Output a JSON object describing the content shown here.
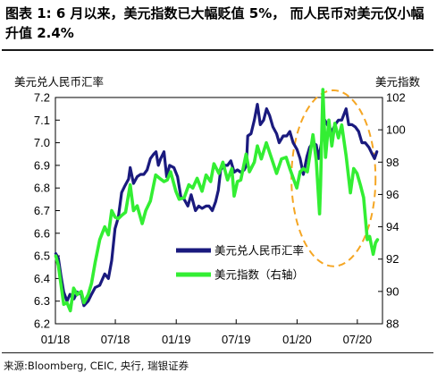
{
  "header": {
    "title": "图表 1: 6 月以来，美元指数已大幅贬值 5%， 而人民币对美元仅小幅升值 2.4%"
  },
  "footer": {
    "source": "来源:Bloomberg, CEIC, 央行, 瑞银证券"
  },
  "colors": {
    "usdcny": "#1a1a7e",
    "dxy": "#33ee33",
    "highlight": "#f5a623"
  },
  "chart_data": {
    "type": "line",
    "x_type": "date",
    "xlim": [
      "2018-01-01",
      "2020-09-15"
    ],
    "x_ticks": [
      {
        "date": "2018-01-01",
        "label": "01/18"
      },
      {
        "date": "2018-07-01",
        "label": "07/18"
      },
      {
        "date": "2019-01-01",
        "label": "01/19"
      },
      {
        "date": "2019-07-01",
        "label": "07/19"
      },
      {
        "date": "2020-01-01",
        "label": "01/20"
      },
      {
        "date": "2020-07-01",
        "label": "07/20"
      }
    ],
    "y_left": {
      "label": "美元兑人民币汇率",
      "range": [
        6.2,
        7.2
      ],
      "ticks": [
        "6.2",
        "6.3",
        "6.4",
        "6.5",
        "6.6",
        "6.7",
        "6.8",
        "6.9",
        "7.0",
        "7.1",
        "7.2"
      ]
    },
    "y_right": {
      "label": "美元指数",
      "range": [
        88,
        102
      ],
      "ticks": [
        "88",
        "90",
        "92",
        "94",
        "96",
        "98",
        "100",
        "102"
      ]
    },
    "legend": {
      "placement": "middle-right"
    },
    "highlight": {
      "shape": "dashed-ellipse",
      "x_range": [
        "2019-12-15",
        "2020-08-25"
      ],
      "y_range": [
        92,
        102
      ],
      "axis": "right"
    },
    "series": [
      {
        "name": "美元兑人民币汇率",
        "axis": "left",
        "points": [
          [
            "2018-01-02",
            6.51
          ],
          [
            "2018-01-10",
            6.49
          ],
          [
            "2018-01-18",
            6.41
          ],
          [
            "2018-01-26",
            6.34
          ],
          [
            "2018-02-05",
            6.3
          ],
          [
            "2018-02-14",
            6.33
          ],
          [
            "2018-02-26",
            6.31
          ],
          [
            "2018-03-08",
            6.34
          ],
          [
            "2018-03-20",
            6.33
          ],
          [
            "2018-03-28",
            6.28
          ],
          [
            "2018-04-10",
            6.3
          ],
          [
            "2018-04-20",
            6.33
          ],
          [
            "2018-05-01",
            6.36
          ],
          [
            "2018-05-15",
            6.37
          ],
          [
            "2018-05-30",
            6.42
          ],
          [
            "2018-06-10",
            6.4
          ],
          [
            "2018-06-20",
            6.48
          ],
          [
            "2018-06-30",
            6.62
          ],
          [
            "2018-07-10",
            6.67
          ],
          [
            "2018-07-20",
            6.78
          ],
          [
            "2018-07-30",
            6.81
          ],
          [
            "2018-08-10",
            6.84
          ],
          [
            "2018-08-15",
            6.89
          ],
          [
            "2018-08-25",
            6.82
          ],
          [
            "2018-09-05",
            6.85
          ],
          [
            "2018-09-15",
            6.86
          ],
          [
            "2018-09-25",
            6.86
          ],
          [
            "2018-10-05",
            6.88
          ],
          [
            "2018-10-15",
            6.93
          ],
          [
            "2018-10-25",
            6.95
          ],
          [
            "2018-11-01",
            6.96
          ],
          [
            "2018-11-08",
            6.9
          ],
          [
            "2018-11-15",
            6.93
          ],
          [
            "2018-11-25",
            6.96
          ],
          [
            "2018-12-03",
            6.85
          ],
          [
            "2018-12-12",
            6.9
          ],
          [
            "2018-12-25",
            6.89
          ],
          [
            "2019-01-05",
            6.85
          ],
          [
            "2019-01-15",
            6.76
          ],
          [
            "2019-01-25",
            6.75
          ],
          [
            "2019-02-05",
            6.72
          ],
          [
            "2019-02-15",
            6.77
          ],
          [
            "2019-02-28",
            6.7
          ],
          [
            "2019-03-10",
            6.72
          ],
          [
            "2019-03-20",
            6.71
          ],
          [
            "2019-04-01",
            6.72
          ],
          [
            "2019-04-10",
            6.72
          ],
          [
            "2019-04-20",
            6.7
          ],
          [
            "2019-04-30",
            6.74
          ],
          [
            "2019-05-08",
            6.79
          ],
          [
            "2019-05-15",
            6.88
          ],
          [
            "2019-05-25",
            6.9
          ],
          [
            "2019-06-05",
            6.9
          ],
          [
            "2019-06-15",
            6.92
          ],
          [
            "2019-06-25",
            6.87
          ],
          [
            "2019-07-05",
            6.88
          ],
          [
            "2019-07-15",
            6.87
          ],
          [
            "2019-07-25",
            6.88
          ],
          [
            "2019-08-01",
            6.9
          ],
          [
            "2019-08-05",
            7.03
          ],
          [
            "2019-08-15",
            7.04
          ],
          [
            "2019-08-25",
            7.1
          ],
          [
            "2019-09-03",
            7.17
          ],
          [
            "2019-09-12",
            7.08
          ],
          [
            "2019-09-22",
            7.1
          ],
          [
            "2019-10-01",
            7.15
          ],
          [
            "2019-10-10",
            7.12
          ],
          [
            "2019-10-20",
            7.07
          ],
          [
            "2019-10-31",
            7.04
          ],
          [
            "2019-11-08",
            7.0
          ],
          [
            "2019-11-20",
            7.03
          ],
          [
            "2019-12-01",
            7.03
          ],
          [
            "2019-12-10",
            7.05
          ],
          [
            "2019-12-20",
            7.0
          ],
          [
            "2020-01-01",
            6.97
          ],
          [
            "2020-01-10",
            6.93
          ],
          [
            "2020-01-20",
            6.86
          ],
          [
            "2020-01-31",
            6.94
          ],
          [
            "2020-02-08",
            6.98
          ],
          [
            "2020-02-18",
            7.0
          ],
          [
            "2020-02-28",
            6.99
          ],
          [
            "2020-03-06",
            6.93
          ],
          [
            "2020-03-15",
            7.0
          ],
          [
            "2020-03-25",
            7.1
          ],
          [
            "2020-04-05",
            7.07
          ],
          [
            "2020-04-15",
            7.05
          ],
          [
            "2020-04-25",
            7.08
          ],
          [
            "2020-05-05",
            7.1
          ],
          [
            "2020-05-15",
            7.1
          ],
          [
            "2020-05-28",
            7.15
          ],
          [
            "2020-06-05",
            7.08
          ],
          [
            "2020-06-15",
            7.08
          ],
          [
            "2020-06-25",
            7.07
          ],
          [
            "2020-07-05",
            7.05
          ],
          [
            "2020-07-15",
            7.0
          ],
          [
            "2020-07-25",
            7.0
          ],
          [
            "2020-08-05",
            6.98
          ],
          [
            "2020-08-15",
            6.95
          ],
          [
            "2020-08-22",
            6.93
          ],
          [
            "2020-08-29",
            6.96
          ]
        ]
      },
      {
        "name": "美元指数（右轴）",
        "axis": "right",
        "points": [
          [
            "2018-01-02",
            92.2
          ],
          [
            "2018-01-10",
            91.6
          ],
          [
            "2018-01-18",
            90.4
          ],
          [
            "2018-01-26",
            89.2
          ],
          [
            "2018-02-05",
            89.3
          ],
          [
            "2018-02-15",
            88.8
          ],
          [
            "2018-02-25",
            90.2
          ],
          [
            "2018-03-08",
            89.8
          ],
          [
            "2018-03-20",
            90.0
          ],
          [
            "2018-03-28",
            89.3
          ],
          [
            "2018-04-10",
            89.8
          ],
          [
            "2018-04-20",
            90.5
          ],
          [
            "2018-05-01",
            91.8
          ],
          [
            "2018-05-15",
            93.2
          ],
          [
            "2018-05-30",
            94.0
          ],
          [
            "2018-06-10",
            93.5
          ],
          [
            "2018-06-20",
            95.0
          ],
          [
            "2018-06-30",
            94.6
          ],
          [
            "2018-07-10",
            94.5
          ],
          [
            "2018-07-20",
            94.7
          ],
          [
            "2018-08-01",
            94.9
          ],
          [
            "2018-08-15",
            96.6
          ],
          [
            "2018-08-25",
            95.0
          ],
          [
            "2018-09-05",
            95.3
          ],
          [
            "2018-09-20",
            94.2
          ],
          [
            "2018-10-01",
            95.0
          ],
          [
            "2018-10-15",
            95.6
          ],
          [
            "2018-10-31",
            97.2
          ],
          [
            "2018-11-12",
            97.0
          ],
          [
            "2018-11-25",
            96.8
          ],
          [
            "2018-12-05",
            96.9
          ],
          [
            "2018-12-15",
            97.4
          ],
          [
            "2018-12-31",
            96.2
          ],
          [
            "2019-01-10",
            95.7
          ],
          [
            "2019-01-25",
            95.8
          ],
          [
            "2019-02-08",
            96.6
          ],
          [
            "2019-02-20",
            96.4
          ],
          [
            "2019-03-05",
            97.0
          ],
          [
            "2019-03-20",
            96.2
          ],
          [
            "2019-04-01",
            97.2
          ],
          [
            "2019-04-15",
            96.8
          ],
          [
            "2019-04-25",
            97.9
          ],
          [
            "2019-05-10",
            97.3
          ],
          [
            "2019-05-22",
            98.0
          ],
          [
            "2019-06-05",
            96.9
          ],
          [
            "2019-06-18",
            97.6
          ],
          [
            "2019-06-25",
            95.9
          ],
          [
            "2019-07-05",
            96.8
          ],
          [
            "2019-07-15",
            96.9
          ],
          [
            "2019-07-31",
            98.5
          ],
          [
            "2019-08-10",
            97.4
          ],
          [
            "2019-08-25",
            98.0
          ],
          [
            "2019-09-03",
            99.0
          ],
          [
            "2019-09-15",
            98.2
          ],
          [
            "2019-09-30",
            99.2
          ],
          [
            "2019-10-15",
            98.3
          ],
          [
            "2019-10-31",
            97.3
          ],
          [
            "2019-11-15",
            98.2
          ],
          [
            "2019-11-29",
            98.3
          ],
          [
            "2019-12-10",
            97.6
          ],
          [
            "2019-12-31",
            96.4
          ],
          [
            "2020-01-10",
            97.4
          ],
          [
            "2020-01-20",
            97.6
          ],
          [
            "2020-02-01",
            97.4
          ],
          [
            "2020-02-18",
            99.7
          ],
          [
            "2020-02-28",
            98.1
          ],
          [
            "2020-03-09",
            94.8
          ],
          [
            "2020-03-12",
            96.6
          ],
          [
            "2020-03-19",
            102.5
          ],
          [
            "2020-03-27",
            98.3
          ],
          [
            "2020-04-06",
            100.6
          ],
          [
            "2020-04-15",
            99.0
          ],
          [
            "2020-04-24",
            100.4
          ],
          [
            "2020-05-05",
            99.5
          ],
          [
            "2020-05-15",
            100.3
          ],
          [
            "2020-05-28",
            98.4
          ],
          [
            "2020-06-10",
            96.1
          ],
          [
            "2020-06-20",
            97.6
          ],
          [
            "2020-06-30",
            97.3
          ],
          [
            "2020-07-10",
            96.6
          ],
          [
            "2020-07-20",
            95.8
          ],
          [
            "2020-07-31",
            93.2
          ],
          [
            "2020-08-07",
            93.4
          ],
          [
            "2020-08-18",
            92.3
          ],
          [
            "2020-08-25",
            93.0
          ],
          [
            "2020-08-31",
            93.2
          ]
        ]
      }
    ]
  }
}
